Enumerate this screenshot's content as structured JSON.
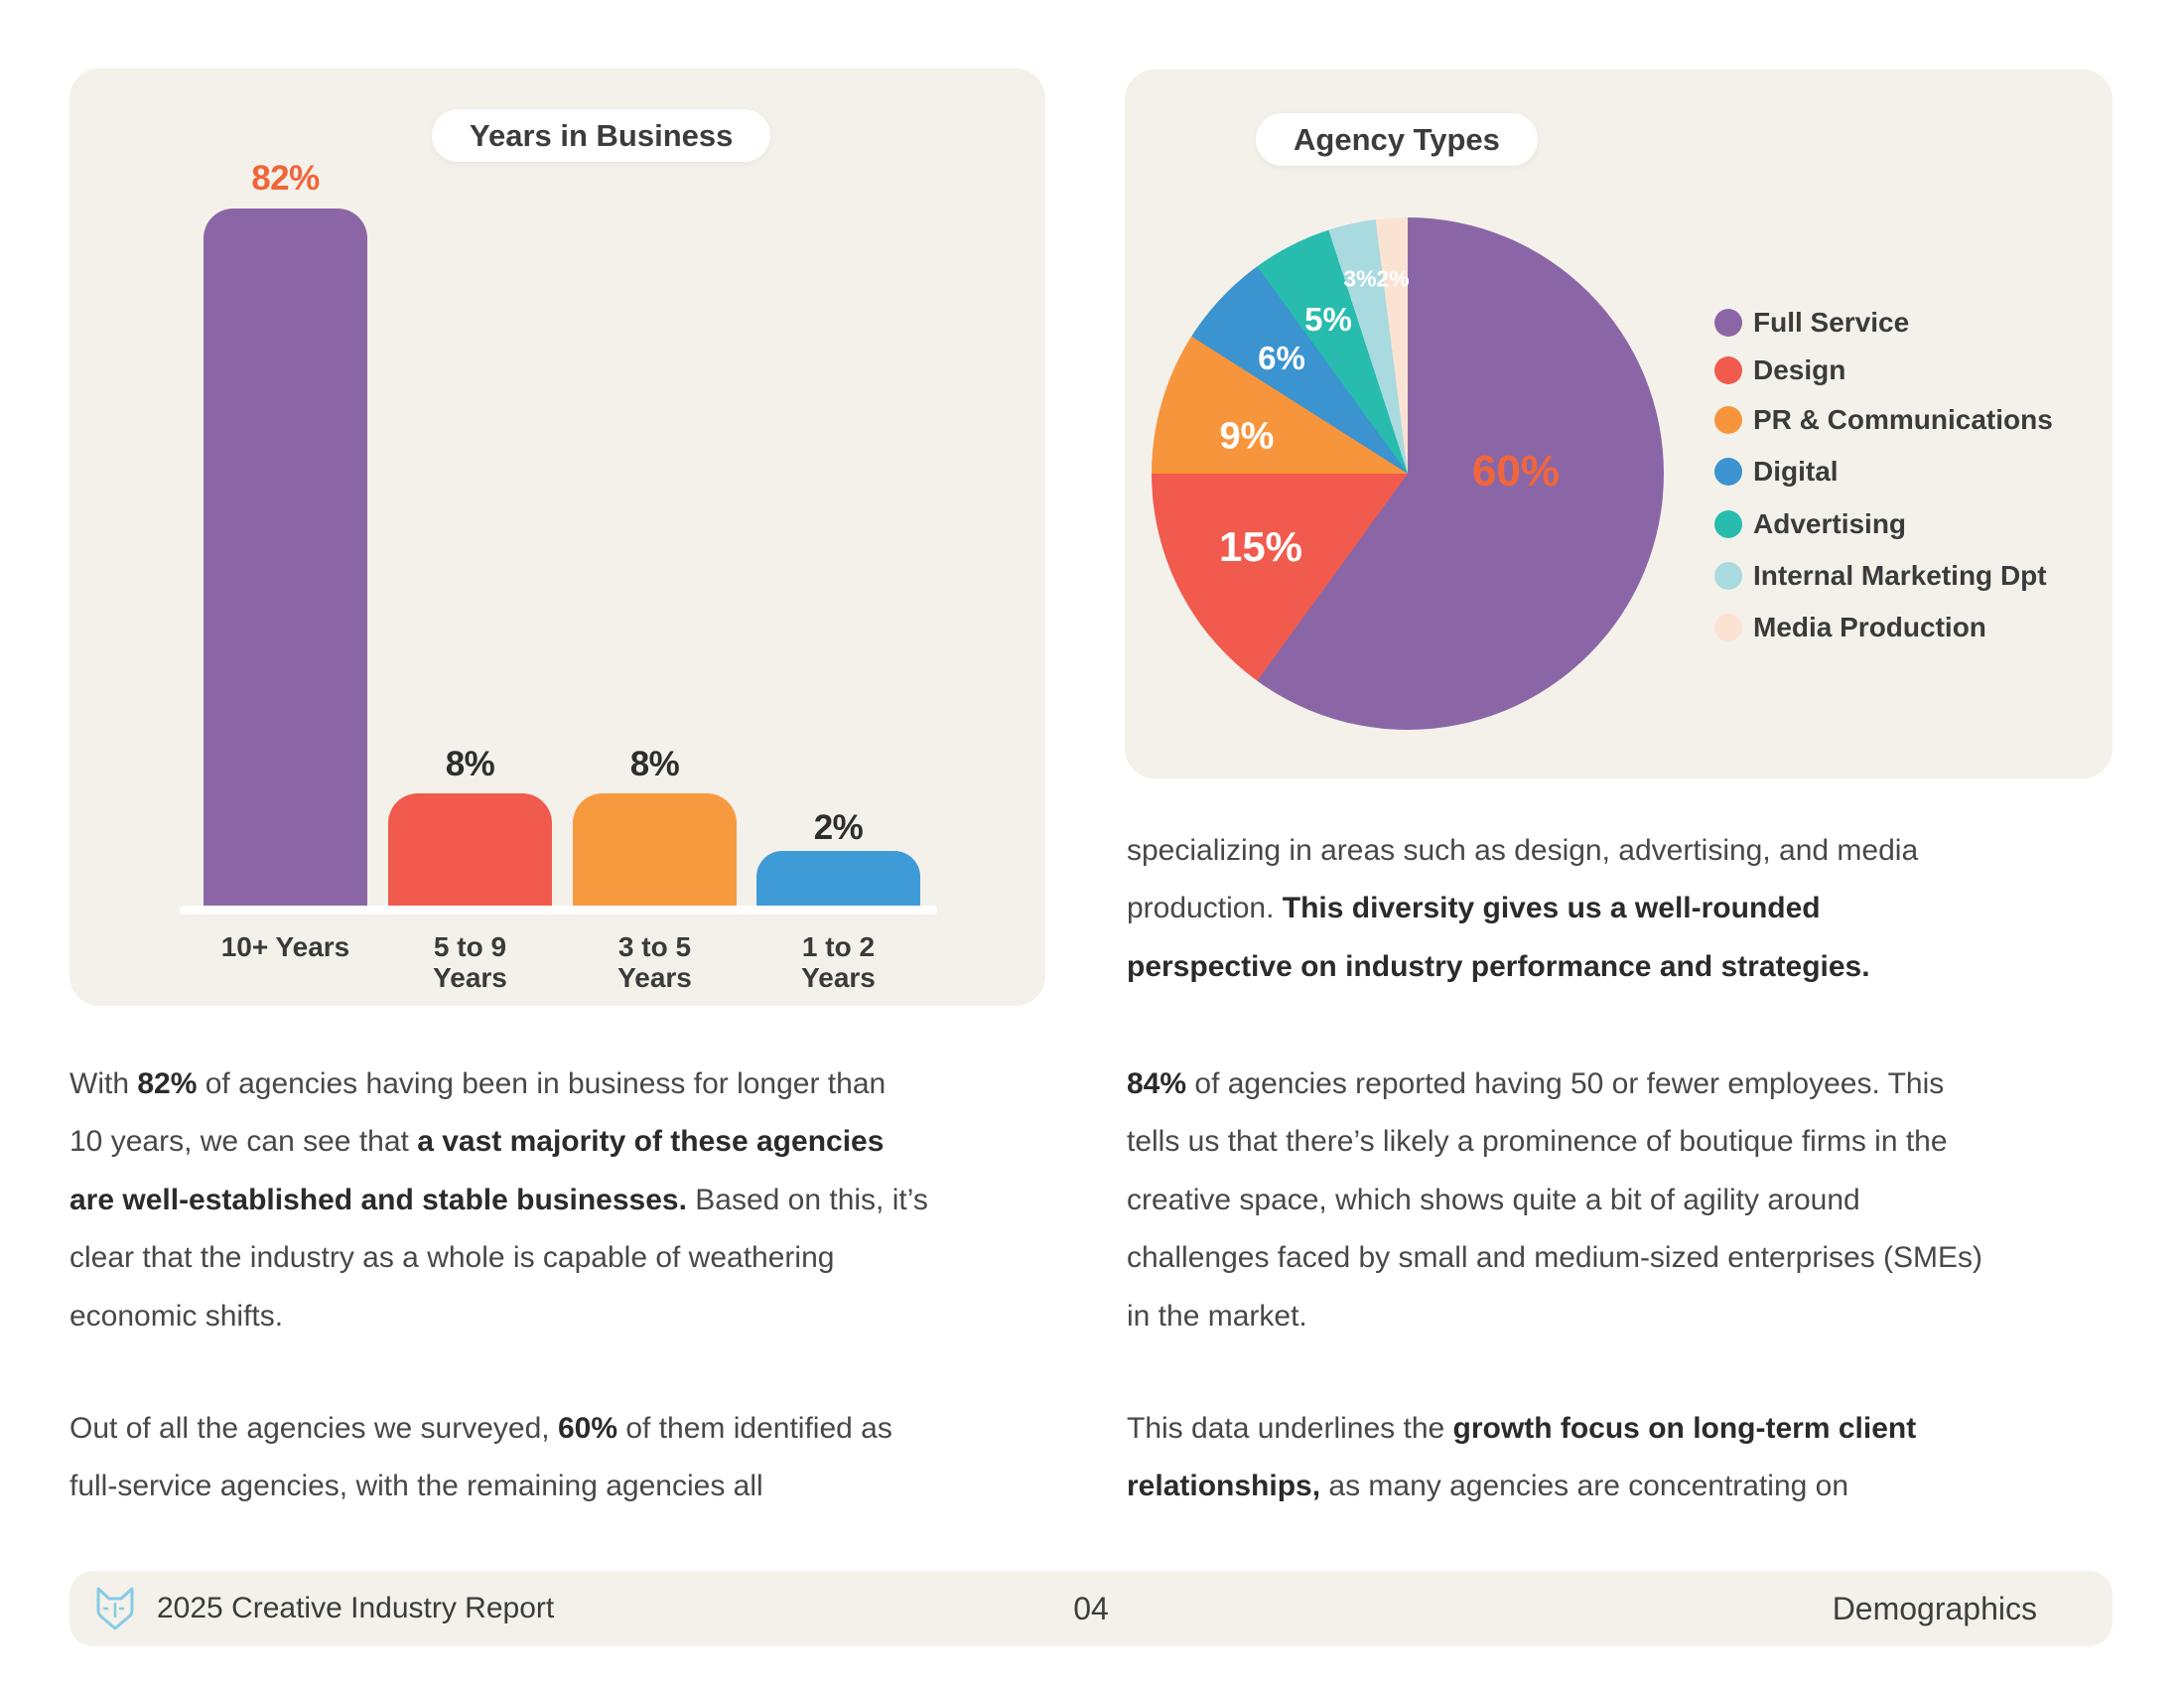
{
  "page": {
    "footer": {
      "brand": "2025 Creative Industry Report",
      "page_number": "04",
      "section": "Demographics",
      "logo": "fox-logo-icon"
    }
  },
  "colors": {
    "page_bg": "#FFFFFF",
    "panel_bg": "#F4F1EA",
    "accent_orange": "#F0663B",
    "text_dark": "#2B2B2B",
    "text_body": "#484848",
    "heading_text": "#3C3C3C",
    "axis_line": "#FFFFFF",
    "logo_blue": "#85CBE5"
  },
  "chart_data": [
    {
      "type": "bar",
      "title": "Years in Business",
      "categories": [
        "10+ Years",
        "5 to 9 Years",
        "3 to 5 Years",
        "1 to 2 Years"
      ],
      "values": [
        82,
        8,
        8,
        2
      ],
      "unit": "%",
      "value_labels": [
        "82%",
        "8%",
        "8%",
        "2%"
      ],
      "bar_colors": [
        "#8B66A7",
        "#F05B4E",
        "#F7993F",
        "#3E9BD6"
      ],
      "value_label_colors": [
        "#F0663B",
        "#2E2E2E",
        "#2E2E2E",
        "#2E2E2E"
      ],
      "xlabel": "",
      "ylabel": "",
      "ylim": [
        0,
        100
      ],
      "grid": false,
      "axis_style": "white-baseline-only"
    },
    {
      "type": "pie",
      "title": "Agency Types",
      "labels": [
        "Full Service",
        "Design",
        "PR & Communications",
        "Digital",
        "Advertising",
        "Internal Marketing Dpt",
        "Media Production"
      ],
      "values": [
        60,
        15,
        9,
        6,
        5,
        3,
        2
      ],
      "unit": "%",
      "slice_labels": [
        "60%",
        "15%",
        "9%",
        "6%",
        "5%",
        "3%",
        "2%"
      ],
      "colors": [
        "#8B66A7",
        "#F05B4E",
        "#F7953D",
        "#3B93CF",
        "#27BCAE",
        "#A9DADF",
        "#FBE3D3"
      ],
      "slice_label_colors": [
        "#F0663B",
        "#FFFFFF",
        "#FFFFFF",
        "#FFFFFF",
        "#FFFFFF",
        "#FFFFFF",
        "#FFFFFF"
      ],
      "start_angle": "top",
      "direction": "clockwise",
      "legend_position": "right"
    }
  ],
  "body": {
    "left_column": [
      {
        "lines": [
          [
            {
              "t": "With ",
              "b": false
            },
            {
              "t": "82%",
              "b": true
            },
            {
              "t": " of agencies having been in business for longer than",
              "b": false
            }
          ],
          [
            {
              "t": "10 years, we can see that ",
              "b": false
            },
            {
              "t": "a vast majority of these agencies",
              "b": true
            }
          ],
          [
            {
              "t": "are well-established and stable businesses.",
              "b": true
            },
            {
              "t": " Based on this, it’s",
              "b": false
            }
          ],
          [
            {
              "t": "clear that the industry as a whole is capable of weathering",
              "b": false
            }
          ],
          [
            {
              "t": "economic shifts.",
              "b": false
            }
          ]
        ]
      },
      {
        "lines": [
          [
            {
              "t": "Out of all the agencies we surveyed, ",
              "b": false
            },
            {
              "t": "60%",
              "b": true
            },
            {
              "t": " of them identified as",
              "b": false
            }
          ],
          [
            {
              "t": "full-service agencies, with the remaining agencies all",
              "b": false
            }
          ]
        ]
      }
    ],
    "right_column": [
      {
        "lines": [
          [
            {
              "t": "specializing in areas such as design, advertising, and media",
              "b": false
            }
          ],
          [
            {
              "t": "production. ",
              "b": false
            },
            {
              "t": "This diversity gives us a well-rounded",
              "b": true
            }
          ],
          [
            {
              "t": "perspective on industry performance and strategies.",
              "b": true
            }
          ]
        ]
      },
      {
        "lines": [
          [
            {
              "t": "84%",
              "b": true
            },
            {
              "t": " of agencies reported having 50 or fewer employees. This",
              "b": false
            }
          ],
          [
            {
              "t": "tells us that there’s likely a prominence of boutique firms in the",
              "b": false
            }
          ],
          [
            {
              "t": "creative space, which shows quite a bit of agility around",
              "b": false
            }
          ],
          [
            {
              "t": "challenges faced by small and medium-sized enterprises (SMEs)",
              "b": false
            }
          ],
          [
            {
              "t": "in the market.",
              "b": false
            }
          ]
        ]
      },
      {
        "lines": [
          [
            {
              "t": "This data underlines the ",
              "b": false
            },
            {
              "t": "growth focus on long-term client",
              "b": true
            }
          ],
          [
            {
              "t": "relationships,",
              "b": true
            },
            {
              "t": " as many agencies are concentrating on",
              "b": false
            }
          ]
        ]
      }
    ]
  }
}
